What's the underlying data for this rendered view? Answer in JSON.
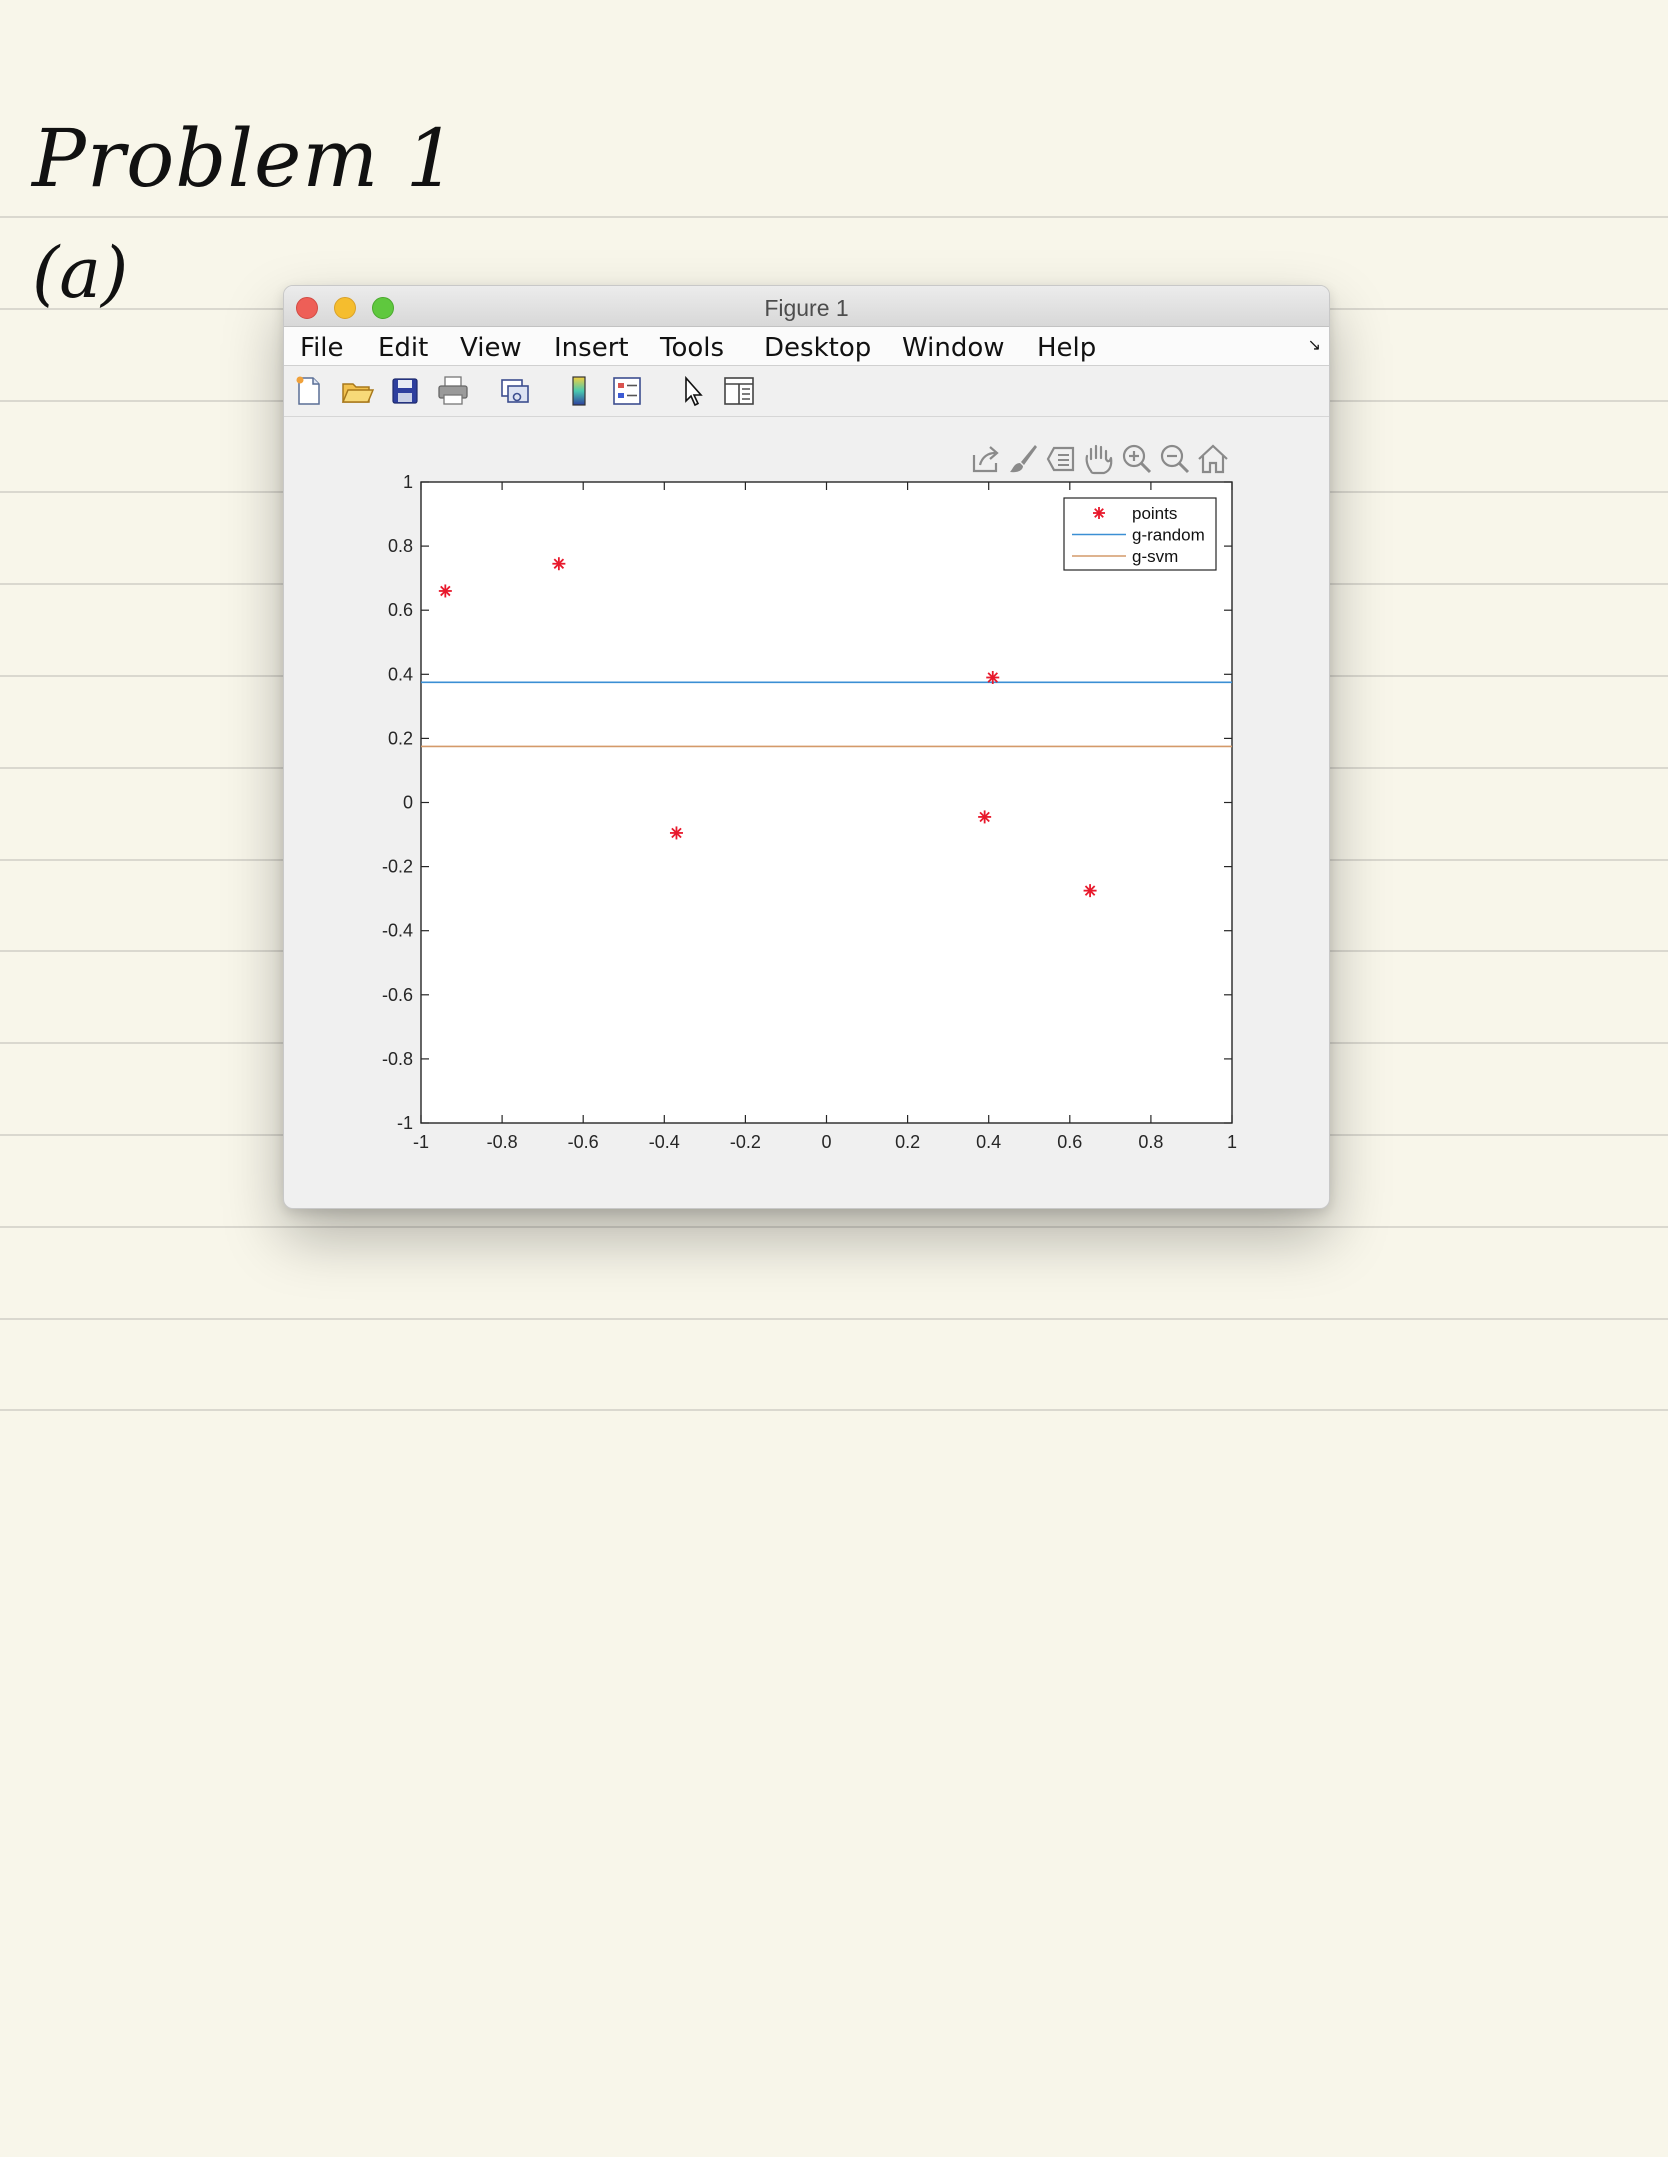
{
  "notes": {
    "heading": "Problem 1",
    "part": "(a)"
  },
  "window": {
    "title": "Figure 1",
    "menu": [
      "File",
      "Edit",
      "View",
      "Insert",
      "Tools",
      "Desktop",
      "Window",
      "Help"
    ],
    "toolbar_icons": [
      "new-figure-icon",
      "open-file-icon",
      "save-icon",
      "print-icon",
      "link-plot-icon",
      "colorbar-icon",
      "legend-icon",
      "pointer-icon",
      "property-inspector-icon"
    ],
    "axes_toolbar_icons": [
      "export-icon",
      "brush-icon",
      "data-tips-icon",
      "pan-icon",
      "zoom-in-icon",
      "zoom-out-icon",
      "home-icon"
    ]
  },
  "chart_data": {
    "type": "scatter",
    "xlim": [
      -1,
      1
    ],
    "ylim": [
      -1,
      1
    ],
    "x_ticks": [
      "-1",
      "-0.8",
      "-0.6",
      "-0.4",
      "-0.2",
      "0",
      "0.2",
      "0.4",
      "0.6",
      "0.8",
      "1"
    ],
    "y_ticks": [
      "1",
      "0.8",
      "0.6",
      "0.4",
      "0.2",
      "0",
      "-0.2",
      "-0.4",
      "-0.6",
      "-0.8",
      "-1"
    ],
    "grid": false,
    "legend_position": "top-right",
    "series": [
      {
        "name": "points",
        "kind": "marker",
        "marker": "*",
        "color": "#e8192c",
        "points": [
          [
            -0.94,
            0.66
          ],
          [
            -0.66,
            0.745
          ],
          [
            -0.37,
            -0.095
          ],
          [
            0.39,
            -0.045
          ],
          [
            0.41,
            0.39
          ],
          [
            0.65,
            -0.275
          ]
        ]
      },
      {
        "name": "g-random",
        "kind": "hline",
        "y": 0.375,
        "color": "#3b8fd4"
      },
      {
        "name": "g-svm",
        "kind": "hline",
        "y": 0.175,
        "color": "#d49a6a"
      }
    ]
  }
}
